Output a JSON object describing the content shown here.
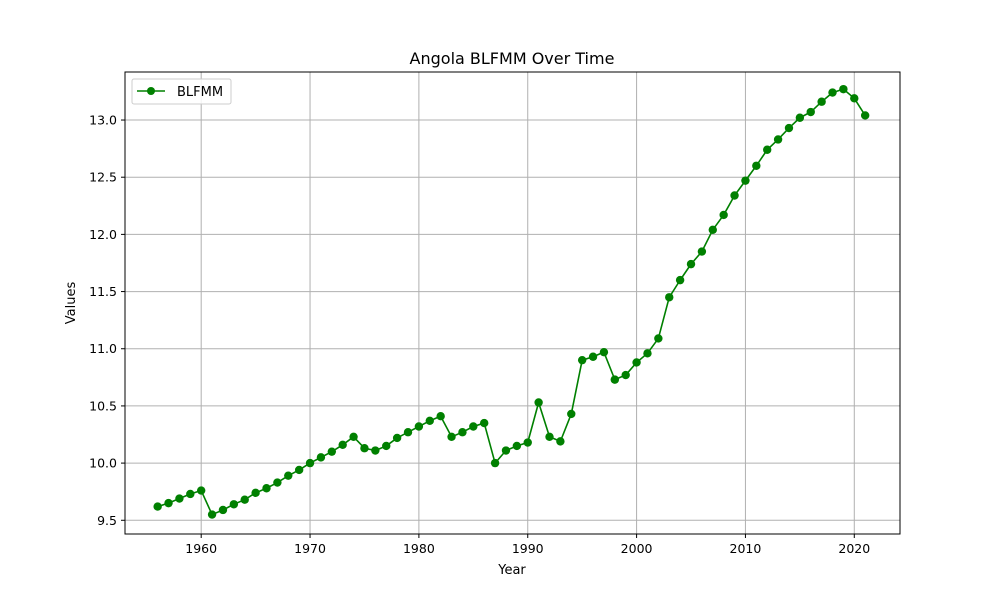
{
  "chart_data": {
    "type": "line",
    "title": "Angola BLFMM Over Time",
    "xlabel": "Year",
    "ylabel": "Values",
    "xlim": [
      1953,
      2024.2
    ],
    "ylim": [
      9.38,
      13.42
    ],
    "xticks": [
      1960,
      1970,
      1980,
      1990,
      2000,
      2010,
      2020
    ],
    "yticks": [
      9.5,
      10.0,
      10.5,
      11.0,
      11.5,
      12.0,
      12.5,
      13.0
    ],
    "ytick_labels": [
      "9.5",
      "10.0",
      "10.5",
      "11.0",
      "11.5",
      "12.0",
      "12.5",
      "13.0"
    ],
    "grid": true,
    "legend_position": "top-left",
    "colors": {
      "series": "#008000",
      "grid": "#b0b0b0",
      "axis": "#000000"
    },
    "series": [
      {
        "name": "BLFMM",
        "x": [
          1956,
          1957,
          1958,
          1959,
          1960,
          1961,
          1962,
          1963,
          1964,
          1965,
          1966,
          1967,
          1968,
          1969,
          1970,
          1971,
          1972,
          1973,
          1974,
          1975,
          1976,
          1977,
          1978,
          1979,
          1980,
          1981,
          1982,
          1983,
          1984,
          1985,
          1986,
          1987,
          1988,
          1989,
          1990,
          1991,
          1992,
          1993,
          1994,
          1995,
          1996,
          1997,
          1998,
          1999,
          2000,
          2001,
          2002,
          2003,
          2004,
          2005,
          2006,
          2007,
          2008,
          2009,
          2010,
          2011,
          2012,
          2013,
          2014,
          2015,
          2016,
          2017,
          2018,
          2019,
          2020,
          2021
        ],
        "values": [
          9.62,
          9.65,
          9.69,
          9.73,
          9.76,
          9.55,
          9.59,
          9.64,
          9.68,
          9.74,
          9.78,
          9.83,
          9.89,
          9.94,
          10.0,
          10.05,
          10.1,
          10.16,
          10.23,
          10.13,
          10.11,
          10.15,
          10.22,
          10.27,
          10.32,
          10.37,
          10.41,
          10.23,
          10.27,
          10.32,
          10.35,
          10.0,
          10.11,
          10.15,
          10.18,
          10.53,
          10.23,
          10.19,
          10.43,
          10.9,
          10.93,
          10.97,
          10.73,
          10.77,
          10.88,
          10.96,
          11.09,
          11.45,
          11.6,
          11.74,
          11.85,
          12.04,
          12.17,
          12.34,
          12.47,
          12.6,
          12.74,
          12.83,
          12.93,
          13.02,
          13.07,
          13.16,
          13.24,
          13.27,
          13.19,
          13.04
        ]
      }
    ]
  }
}
